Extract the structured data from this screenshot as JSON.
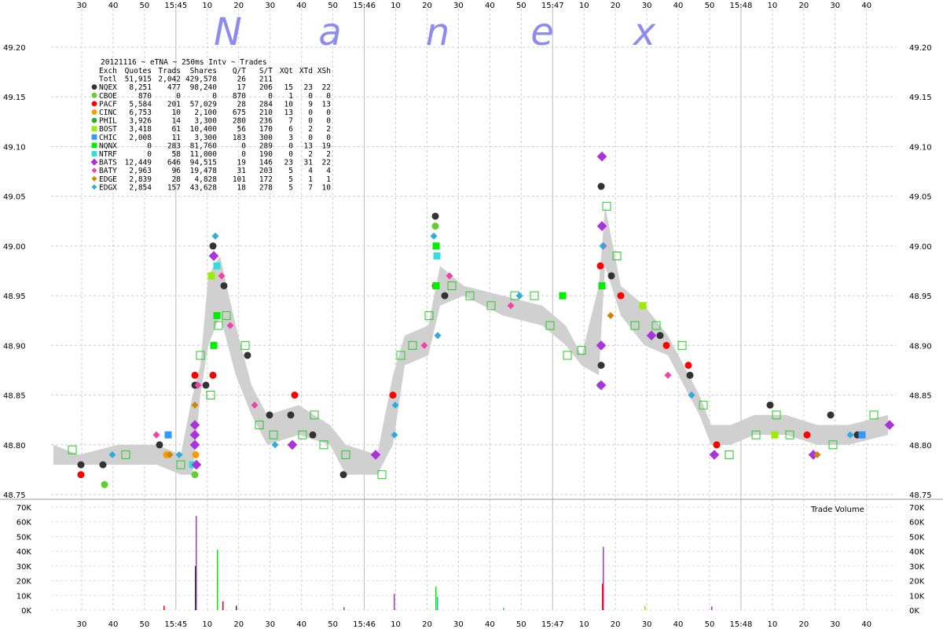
{
  "chart_data": {
    "type": "scatter",
    "watermark": [
      "N",
      "a",
      "n",
      "e",
      "x"
    ],
    "time_ticks": [
      "30",
      "40",
      "50",
      "15:45",
      "10",
      "20",
      "30",
      "40",
      "50",
      "15:46",
      "10",
      "20",
      "30",
      "40",
      "50",
      "15:47",
      "10",
      "20",
      "30",
      "40",
      "50",
      "15:48",
      "10",
      "20",
      "30",
      "40"
    ],
    "price_ticks": [
      "49.20",
      "49.15",
      "49.10",
      "49.05",
      "49.00",
      "48.95",
      "48.90",
      "48.85",
      "48.80",
      "48.75"
    ],
    "price_ylim": [
      48.75,
      49.2
    ],
    "volume_ticks": [
      "70K",
      "60K",
      "50K",
      "40K",
      "30K",
      "20K",
      "10K",
      "0K"
    ],
    "volume_ylim": [
      0,
      70000
    ],
    "volume_label": "Trade Volume",
    "grid": true,
    "legend_placement": "top-left",
    "table": {
      "title": "20121116 ~ eTNA ~ 250ms Intv ~ Trades",
      "header": [
        "Exch",
        "Quotes",
        "Trads",
        "Shares",
        "Q/T",
        "S/T",
        "XQt",
        "XTd",
        "XSh"
      ],
      "rows": [
        {
          "exch": "Totl",
          "quotes": "51,915",
          "trads": "2,042",
          "shares": "429,578",
          "qt": "26",
          "st": "211",
          "xqt": "",
          "xtd": "",
          "xsh": "",
          "color": "",
          "marker": "none"
        },
        {
          "exch": "NQEX",
          "quotes": "8,251",
          "trads": "477",
          "shares": "98,240",
          "qt": "17",
          "st": "206",
          "xqt": "15",
          "xtd": "23",
          "xsh": "22",
          "color": "#333333",
          "marker": "circle"
        },
        {
          "exch": "CBOE",
          "quotes": "870",
          "trads": "0",
          "shares": "0",
          "qt": "870",
          "st": "0",
          "xqt": "1",
          "xtd": "0",
          "xsh": "0",
          "color": "#66cc33",
          "marker": "circle"
        },
        {
          "exch": "PACF",
          "quotes": "5,584",
          "trads": "201",
          "shares": "57,029",
          "qt": "28",
          "st": "284",
          "xqt": "10",
          "xtd": "9",
          "xsh": "13",
          "color": "#ff0000",
          "marker": "circle"
        },
        {
          "exch": "CINC",
          "quotes": "6,753",
          "trads": "10",
          "shares": "2,100",
          "qt": "675",
          "st": "210",
          "xqt": "13",
          "xtd": "0",
          "xsh": "0",
          "color": "#ff9900",
          "marker": "circle"
        },
        {
          "exch": "PHIL",
          "quotes": "3,926",
          "trads": "14",
          "shares": "3,300",
          "qt": "280",
          "st": "236",
          "xqt": "7",
          "xtd": "0",
          "xsh": "0",
          "color": "#33aa33",
          "marker": "circle"
        },
        {
          "exch": "BOST",
          "quotes": "3,418",
          "trads": "61",
          "shares": "10,400",
          "qt": "56",
          "st": "170",
          "xqt": "6",
          "xtd": "2",
          "xsh": "2",
          "color": "#99ee00",
          "marker": "square"
        },
        {
          "exch": "CHIC",
          "quotes": "2,008",
          "trads": "11",
          "shares": "3,300",
          "qt": "183",
          "st": "300",
          "xqt": "3",
          "xtd": "0",
          "xsh": "0",
          "color": "#3399ff",
          "marker": "square"
        },
        {
          "exch": "NQNX",
          "quotes": "0",
          "trads": "283",
          "shares": "81,760",
          "qt": "0",
          "st": "289",
          "xqt": "0",
          "xtd": "13",
          "xsh": "19",
          "color": "#00ee00",
          "marker": "square"
        },
        {
          "exch": "NTRF",
          "quotes": "0",
          "trads": "58",
          "shares": "11,000",
          "qt": "0",
          "st": "190",
          "xqt": "0",
          "xtd": "2",
          "xsh": "2",
          "color": "#33dddd",
          "marker": "square"
        },
        {
          "exch": "BATS",
          "quotes": "12,449",
          "trads": "646",
          "shares": "94,515",
          "qt": "19",
          "st": "146",
          "xqt": "23",
          "xtd": "31",
          "xsh": "22",
          "color": "#aa33dd",
          "marker": "bigdiamond"
        },
        {
          "exch": "BATY",
          "quotes": "2,963",
          "trads": "96",
          "shares": "19,478",
          "qt": "31",
          "st": "203",
          "xqt": "5",
          "xtd": "4",
          "xsh": "4",
          "color": "#ee44aa",
          "marker": "diamond"
        },
        {
          "exch": "EDGE",
          "quotes": "2,839",
          "trads": "28",
          "shares": "4,828",
          "qt": "101",
          "st": "172",
          "xqt": "5",
          "xtd": "1",
          "xsh": "1",
          "color": "#cc8800",
          "marker": "diamond"
        },
        {
          "exch": "EDGX",
          "quotes": "2,854",
          "trads": "157",
          "shares": "43,628",
          "qt": "18",
          "st": "278",
          "xqt": "5",
          "xtd": "7",
          "xsh": "10",
          "color": "#33aadd",
          "marker": "diamond"
        }
      ]
    },
    "series": [
      {
        "name": "NQEX",
        "color": "#333333",
        "marker": "circle",
        "points": [
          [
            103,
            48.78
          ],
          [
            131,
            48.78
          ],
          [
            203,
            48.8
          ],
          [
            248,
            48.86
          ],
          [
            262,
            48.86
          ],
          [
            271,
            49.0
          ],
          [
            285,
            48.96
          ],
          [
            315,
            48.89
          ],
          [
            343,
            48.83
          ],
          [
            370,
            48.83
          ],
          [
            398,
            48.81
          ],
          [
            437,
            48.77
          ],
          [
            554,
            49.03
          ],
          [
            566,
            48.95
          ],
          [
            765,
            49.06
          ],
          [
            765,
            48.88
          ],
          [
            778,
            48.97
          ],
          [
            840,
            48.91
          ],
          [
            878,
            48.87
          ],
          [
            980,
            48.84
          ],
          [
            1057,
            48.83
          ],
          [
            1091,
            48.81
          ]
        ]
      },
      {
        "name": "PACF",
        "color": "#ff0000",
        "marker": "circle",
        "points": [
          [
            103,
            48.77
          ],
          [
            248,
            48.87
          ],
          [
            271,
            48.87
          ],
          [
            375,
            48.85
          ],
          [
            500,
            48.85
          ],
          [
            554,
            48.96
          ],
          [
            764,
            48.98
          ],
          [
            790,
            48.95
          ],
          [
            848,
            48.9
          ],
          [
            876,
            48.88
          ],
          [
            912,
            48.8
          ],
          [
            1027,
            48.81
          ]
        ]
      },
      {
        "name": "CBOE",
        "color": "#66cc33",
        "marker": "circle",
        "points": [
          [
            133,
            48.76
          ],
          [
            248,
            48.77
          ],
          [
            554,
            49.02
          ],
          [
            764,
            48.86
          ]
        ]
      },
      {
        "name": "CINC",
        "color": "#ff9900",
        "marker": "circle",
        "points": [
          [
            212,
            48.79
          ],
          [
            249,
            48.79
          ]
        ]
      },
      {
        "name": "BOST",
        "color": "#99ee00",
        "marker": "square",
        "points": [
          [
            269,
            48.97
          ],
          [
            818,
            48.94
          ],
          [
            986,
            48.81
          ]
        ]
      },
      {
        "name": "CHIC",
        "color": "#3399ff",
        "marker": "square",
        "points": [
          [
            214,
            48.81
          ],
          [
            1097,
            48.81
          ]
        ]
      },
      {
        "name": "NQNX",
        "color": "#00ee00",
        "marker": "square",
        "points": [
          [
            272,
            48.9
          ],
          [
            276,
            48.93
          ],
          [
            555,
            49.0
          ],
          [
            555,
            48.96
          ],
          [
            766,
            48.96
          ],
          [
            716,
            48.95
          ]
        ]
      },
      {
        "name": "NTRF",
        "color": "#33dddd",
        "marker": "square",
        "points": [
          [
            245,
            48.78
          ],
          [
            276,
            48.98
          ],
          [
            556,
            48.99
          ]
        ]
      },
      {
        "name": "BATS",
        "color": "#aa33dd",
        "marker": "bigdiamond",
        "points": [
          [
            248,
            48.82
          ],
          [
            248,
            48.81
          ],
          [
            248,
            48.8
          ],
          [
            250,
            48.78
          ],
          [
            272,
            48.99
          ],
          [
            372,
            48.8
          ],
          [
            478,
            48.79
          ],
          [
            766,
            49.09
          ],
          [
            766,
            49.02
          ],
          [
            765,
            48.9
          ],
          [
            765,
            48.86
          ],
          [
            829,
            48.91
          ],
          [
            909,
            48.79
          ],
          [
            1035,
            48.79
          ],
          [
            1132,
            48.82
          ]
        ]
      },
      {
        "name": "BATY",
        "color": "#ee44aa",
        "marker": "diamond",
        "points": [
          [
            199,
            48.81
          ],
          [
            252,
            48.86
          ],
          [
            282,
            48.97
          ],
          [
            293,
            48.92
          ],
          [
            324,
            48.84
          ],
          [
            540,
            48.9
          ],
          [
            572,
            48.97
          ],
          [
            650,
            48.94
          ],
          [
            768,
            49.0
          ],
          [
            850,
            48.87
          ],
          [
            880,
            48.85
          ]
        ]
      },
      {
        "name": "EDGE",
        "color": "#cc8800",
        "marker": "diamond",
        "points": [
          [
            248,
            48.84
          ],
          [
            216,
            48.79
          ],
          [
            777,
            48.93
          ],
          [
            1040,
            48.79
          ]
        ]
      },
      {
        "name": "EDGX",
        "color": "#33aadd",
        "marker": "diamond",
        "points": [
          [
            143,
            48.79
          ],
          [
            228,
            48.79
          ],
          [
            274,
            49.01
          ],
          [
            350,
            48.8
          ],
          [
            502,
            48.81
          ],
          [
            503,
            48.84
          ],
          [
            552,
            49.01
          ],
          [
            557,
            48.91
          ],
          [
            661,
            48.95
          ],
          [
            767,
            49.0
          ],
          [
            880,
            48.85
          ],
          [
            1082,
            48.81
          ]
        ]
      }
    ],
    "volume": [
      {
        "x": 249,
        "v": 64000,
        "color": "#aa33dd"
      },
      {
        "x": 276,
        "v": 41000,
        "color": "#00ee00"
      },
      {
        "x": 248,
        "v": 30000,
        "color": "#333333"
      },
      {
        "x": 767,
        "v": 43000,
        "color": "#aa33dd"
      },
      {
        "x": 766,
        "v": 18000,
        "color": "#ff0000"
      },
      {
        "x": 554,
        "v": 16000,
        "color": "#00ee00"
      },
      {
        "x": 501,
        "v": 11000,
        "color": "#aa33dd"
      },
      {
        "x": 556,
        "v": 9000,
        "color": "#33aadd"
      },
      {
        "x": 208,
        "v": 3000,
        "color": "#ff0000"
      },
      {
        "x": 283,
        "v": 6000,
        "color": "#ff0000"
      },
      {
        "x": 300,
        "v": 3000,
        "color": "#333333"
      },
      {
        "x": 437,
        "v": 2000,
        "color": "#aa33dd"
      },
      {
        "x": 820,
        "v": 3000,
        "color": "#99ee00"
      },
      {
        "x": 905,
        "v": 2500,
        "color": "#aa33dd"
      },
      {
        "x": 640,
        "v": 1500,
        "color": "#33aadd"
      }
    ]
  }
}
